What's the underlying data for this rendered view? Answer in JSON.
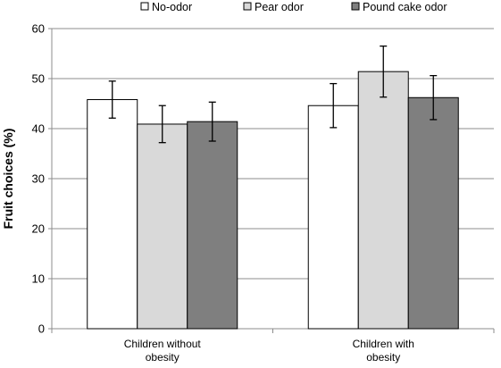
{
  "chart_data": {
    "type": "bar",
    "title": "",
    "xlabel": "",
    "ylabel": "Fruit choices (%)",
    "ylim": [
      0,
      60
    ],
    "yticks": [
      0,
      10,
      20,
      30,
      40,
      50,
      60
    ],
    "grid": true,
    "legend_position": "top",
    "categories": [
      "Children without obesity",
      "Children with obesity"
    ],
    "category_lines": [
      [
        "Children without",
        "obesity"
      ],
      [
        "Children with",
        "obesity"
      ]
    ],
    "series": [
      {
        "name": "No-odor",
        "color": "#ffffff",
        "values": [
          45.8,
          44.6
        ],
        "errors": [
          3.7,
          4.4
        ]
      },
      {
        "name": "Pear odor",
        "color": "#d9d9d9",
        "values": [
          40.9,
          51.4
        ],
        "errors": [
          3.7,
          5.1
        ]
      },
      {
        "name": "Pound cake odor",
        "color": "#7f7f7f",
        "values": [
          41.4,
          46.2
        ],
        "errors": [
          3.9,
          4.4
        ]
      }
    ]
  }
}
